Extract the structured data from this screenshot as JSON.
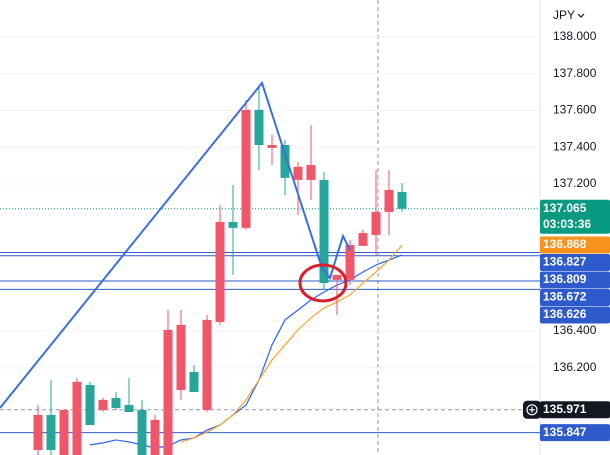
{
  "chart_data": {
    "type": "candlestick",
    "currency": "JPY",
    "ylim": [
      135.725,
      138.201
    ],
    "yticks": [
      {
        "value": 138.0,
        "label": "138.000"
      },
      {
        "value": 137.8,
        "label": "137.800"
      },
      {
        "value": 137.6,
        "label": "137.600"
      },
      {
        "value": 137.4,
        "label": "137.400"
      },
      {
        "value": 137.2,
        "label": "137.200"
      },
      {
        "value": 136.4,
        "label": "136.400"
      },
      {
        "value": 136.2,
        "label": "136.200"
      }
    ],
    "up_color": "#f0566a",
    "down_color": "#26a69a",
    "open": [
      135.752,
      135.943,
      135.725,
      135.725,
      136.106,
      135.97,
      136.035,
      135.997,
      135.97,
      135.725,
      135.725,
      136.079,
      136.177,
      135.97,
      136.449,
      136.993,
      136.961,
      137.603,
      137.396,
      137.412,
      137.222,
      137.222,
      137.222,
      136.678,
      136.678,
      136.863,
      136.922,
      137.048,
      137.156
    ],
    "high": [
      135.997,
      136.133,
      135.97,
      136.144,
      136.123,
      136.035,
      136.068,
      136.144,
      136.025,
      135.943,
      136.514,
      136.514,
      136.215,
      136.487,
      137.086,
      137.195,
      137.657,
      137.739,
      137.467,
      137.439,
      137.32,
      137.521,
      137.265,
      136.705,
      136.895,
      136.95,
      137.276,
      137.276,
      137.205
    ],
    "low": [
      135.725,
      135.725,
      135.725,
      135.725,
      135.888,
      135.959,
      135.97,
      135.959,
      135.725,
      135.725,
      135.725,
      136.025,
      136.068,
      135.959,
      136.433,
      136.705,
      136.95,
      137.276,
      137.303,
      137.14,
      137.031,
      137.113,
      136.623,
      136.487,
      136.65,
      136.863,
      136.814,
      136.922,
      137.048
    ],
    "close": [
      135.943,
      135.752,
      135.97,
      136.123,
      135.888,
      136.025,
      135.981,
      135.959,
      135.725,
      135.916,
      136.406,
      136.433,
      136.068,
      136.46,
      136.993,
      136.961,
      137.603,
      137.412,
      137.412,
      137.233,
      137.293,
      137.303,
      136.661,
      136.705,
      136.868,
      136.933,
      137.048,
      137.167,
      137.065
    ],
    "series": [
      {
        "color": "#2962ff",
        "values": [
          null,
          null,
          null,
          null,
          135.78,
          135.791,
          135.807,
          135.796,
          135.78,
          135.763,
          135.774,
          135.807,
          135.818,
          135.861,
          135.888,
          135.943,
          135.997,
          136.133,
          136.324,
          136.46,
          136.514,
          136.569,
          136.612,
          136.65,
          136.678,
          136.721,
          136.759,
          136.786,
          136.814
        ]
      },
      {
        "color": "#f7a52a",
        "values": [
          null,
          null,
          null,
          null,
          null,
          null,
          null,
          null,
          null,
          null,
          null,
          135.796,
          135.818,
          135.85,
          135.888,
          135.943,
          136.025,
          136.133,
          136.242,
          136.324,
          136.406,
          136.471,
          136.525,
          136.558,
          136.596,
          136.661,
          136.721,
          136.786,
          136.868
        ]
      }
    ],
    "last_price": {
      "value": 137.065,
      "countdown": "03:03:36",
      "color": "#089981"
    },
    "levels": [
      {
        "value": 136.868,
        "color": "#f7931a",
        "line": false
      },
      {
        "value": 136.827,
        "color": "#2e5bcc",
        "line": true
      },
      {
        "value": 136.809,
        "color": "#2e5bcc",
        "line": true
      },
      {
        "value": 136.672,
        "color": "#2e5bcc",
        "line": true
      },
      {
        "value": 136.626,
        "color": "#2e5bcc",
        "line": true
      }
    ],
    "crosshair": {
      "value": 135.971,
      "color": "#131722"
    },
    "bottom_level": {
      "value": 135.847,
      "color": "#2e5bcc"
    }
  }
}
